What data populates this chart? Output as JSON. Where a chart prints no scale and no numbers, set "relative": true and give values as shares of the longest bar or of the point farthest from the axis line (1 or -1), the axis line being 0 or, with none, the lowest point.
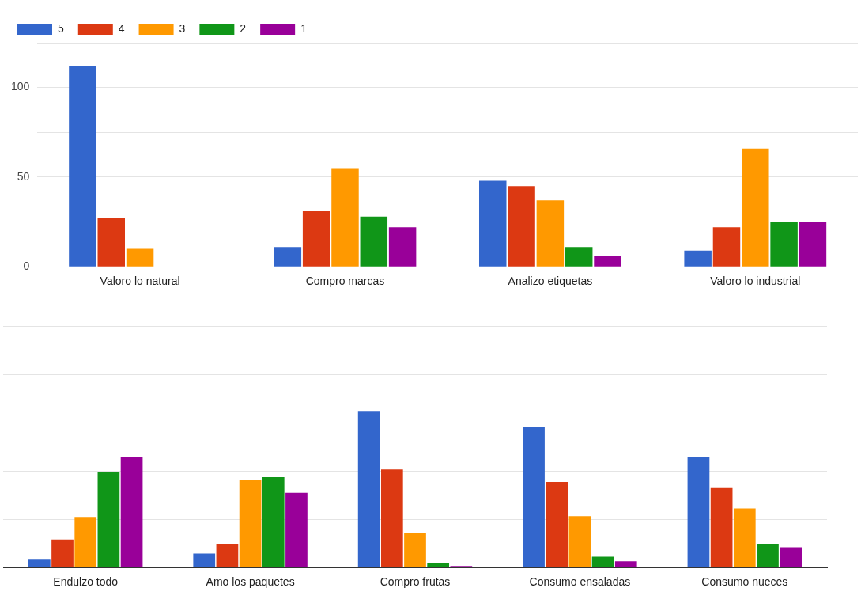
{
  "chart_data": [
    {
      "type": "bar",
      "categories": [
        "Valoro lo natural",
        "Compro marcas",
        "Analizo etiquetas",
        "Valoro lo industrial"
      ],
      "series": [
        {
          "name": "5",
          "color": "#3366cc",
          "values": [
            112,
            11,
            48,
            9
          ]
        },
        {
          "name": "4",
          "color": "#dc3912",
          "values": [
            27,
            31,
            45,
            22
          ]
        },
        {
          "name": "3",
          "color": "#ff9900",
          "values": [
            10,
            55,
            37,
            66
          ]
        },
        {
          "name": "2",
          "color": "#109618",
          "values": [
            0,
            28,
            11,
            25
          ]
        },
        {
          "name": "1",
          "color": "#990099",
          "values": [
            0,
            22,
            6,
            25
          ]
        }
      ],
      "ylim": [
        0,
        125
      ],
      "yticks": [
        0,
        {
          "value": 25,
          "label": null
        },
        50,
        {
          "value": 75,
          "label": null
        },
        100,
        {
          "value": 125,
          "label": null
        }
      ],
      "grid": "y",
      "legend": "top left"
    },
    {
      "type": "bar",
      "relative": true,
      "categories": [
        "Endulzo todo",
        "Amo los paquetes",
        "Compro frutas",
        "Consumo ensaladas",
        "Consumo nueces"
      ],
      "series": [
        {
          "color": "#3366cc",
          "values": [
            0.05,
            0.09,
            1,
            0.9,
            0.71
          ]
        },
        {
          "color": "#dc3912",
          "values": [
            0.18,
            0.15,
            0.63,
            0.55,
            0.51
          ]
        },
        {
          "color": "#ff9900",
          "values": [
            0.32,
            0.56,
            0.22,
            0.33,
            0.38
          ]
        },
        {
          "color": "#109618",
          "values": [
            0.61,
            0.58,
            0.03,
            0.07,
            0.15
          ]
        },
        {
          "color": "#990099",
          "values": [
            0.71,
            0.48,
            0.01,
            0.04,
            0.13
          ]
        }
      ],
      "grid": "y",
      "legend": false
    }
  ]
}
